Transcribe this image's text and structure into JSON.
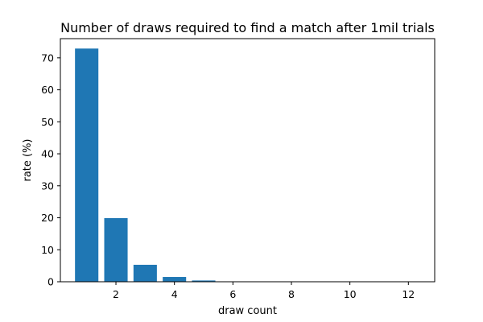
{
  "chart_data": {
    "type": "bar",
    "title": "Number of draws required to find a match after 1mil trials",
    "xlabel": "draw count",
    "ylabel": "rate (%)",
    "x": [
      1,
      2,
      3,
      4,
      5,
      6,
      7,
      8,
      9,
      10,
      11,
      12
    ],
    "values": [
      72.9,
      19.9,
      5.3,
      1.5,
      0.4,
      0.1,
      0.02,
      0.004,
      0.001,
      0.0002,
      5e-05,
      1e-05
    ],
    "xlim": [
      0.1,
      12.9
    ],
    "ylim": [
      0,
      76
    ],
    "xticks": [
      2,
      4,
      6,
      8,
      10,
      12
    ],
    "yticks": [
      0,
      10,
      20,
      30,
      40,
      50,
      60,
      70
    ],
    "bar_color": "#1f77b4",
    "grid": false,
    "legend": "none"
  }
}
